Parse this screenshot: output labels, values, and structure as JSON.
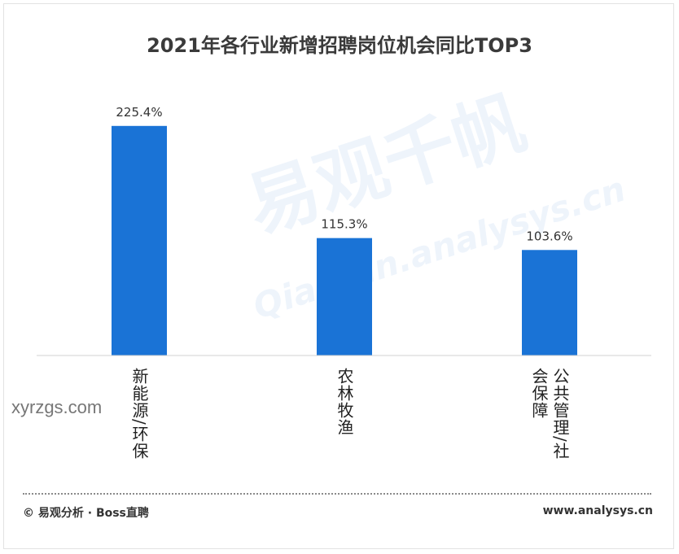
{
  "chart_data": {
    "type": "bar",
    "title": "2021年各行业新增招聘岗位机会同比TOP3",
    "categories": [
      "新能源/环保",
      "农林牧渔",
      "公共管理/社会保障"
    ],
    "values": [
      225.4,
      115.3,
      103.6
    ],
    "value_labels": [
      "225.4%",
      "115.3%",
      "103.6%"
    ],
    "xlabel": "",
    "ylabel": "",
    "ylim": [
      0,
      250
    ],
    "grid": false,
    "bar_color": "#1a73d6"
  },
  "watermark": {
    "cn": "易观千帆",
    "en": "Qianfan.analysys.cn",
    "side": "xyrzgs.com"
  },
  "footer": {
    "source": "© 易观分析 · Boss直聘",
    "site": "www.analysys.cn"
  }
}
